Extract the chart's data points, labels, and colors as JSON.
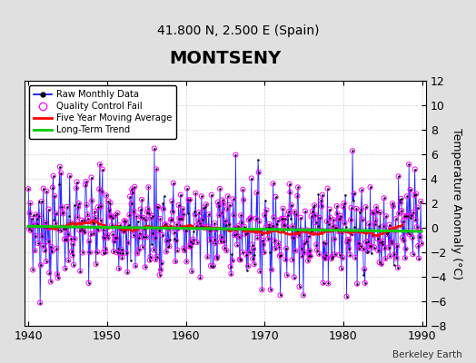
{
  "title": "MONTSENY",
  "subtitle": "41.800 N, 2.500 E (Spain)",
  "ylabel": "Temperature Anomaly (°C)",
  "xlim": [
    1939.5,
    1990.5
  ],
  "ylim": [
    -8,
    12
  ],
  "yticks": [
    -8,
    -6,
    -4,
    -2,
    0,
    2,
    4,
    6,
    8,
    10,
    12
  ],
  "xticks": [
    1940,
    1950,
    1960,
    1970,
    1980,
    1990
  ],
  "raw_line_color": "#0000FF",
  "raw_dot_color": "#000000",
  "qc_color": "#FF00FF",
  "moving_avg_color": "#FF0000",
  "trend_color": "#00CC00",
  "background_color": "#E0E0E0",
  "plot_bg_color": "#FFFFFF",
  "legend_labels": [
    "Raw Monthly Data",
    "Quality Control Fail",
    "Five Year Moving Average",
    "Long-Term Trend"
  ],
  "watermark": "Berkeley Earth",
  "title_fontsize": 14,
  "subtitle_fontsize": 10,
  "ylabel_fontsize": 9,
  "tick_fontsize": 9
}
